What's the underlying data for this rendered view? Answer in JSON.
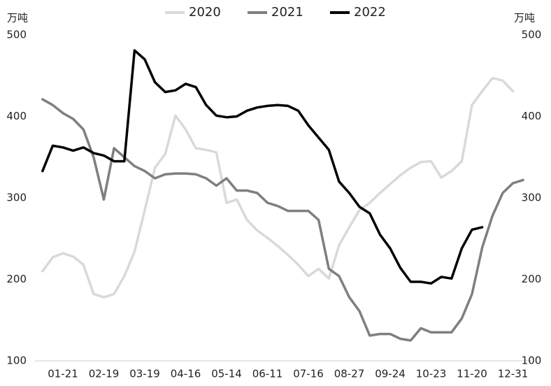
{
  "chart_data": {
    "type": "line",
    "y_label": "万吨",
    "y2_label": "万吨",
    "categories": [
      null,
      null,
      "01-21",
      null,
      null,
      null,
      "02-19",
      null,
      null,
      null,
      "03-19",
      null,
      null,
      null,
      "04-16",
      null,
      null,
      null,
      "05-14",
      null,
      null,
      null,
      "06-11",
      null,
      null,
      null,
      "07-16",
      null,
      null,
      null,
      "08-27",
      null,
      null,
      null,
      "09-24",
      null,
      null,
      null,
      "10-23",
      null,
      null,
      null,
      "11-20",
      null,
      null,
      null,
      "12-31",
      null
    ],
    "ylim": [
      100,
      500
    ],
    "yticks": [
      100,
      200,
      300,
      400,
      500
    ],
    "y2lim": [
      100,
      500
    ],
    "y2ticks": [
      100,
      200,
      300,
      400,
      500
    ],
    "legend": "top",
    "series": [
      {
        "name": "2020",
        "color": "#d9d9d9",
        "values": [
          210,
          227,
          232,
          228,
          218,
          182,
          178,
          182,
          204,
          234,
          285,
          337,
          354,
          401,
          384,
          361,
          359,
          356,
          294,
          298,
          273,
          260,
          251,
          241,
          230,
          218,
          204,
          213,
          201,
          242,
          264,
          285,
          294,
          306,
          317,
          328,
          337,
          344,
          345,
          325,
          333,
          345,
          414,
          431,
          447,
          444,
          431,
          null
        ]
      },
      {
        "name": "2021",
        "color": "#7f7f7f",
        "values": [
          421,
          414,
          404,
          397,
          384,
          350,
          298,
          361,
          350,
          339,
          333,
          324,
          329,
          330,
          330,
          329,
          324,
          315,
          324,
          309,
          309,
          306,
          294,
          290,
          284,
          284,
          284,
          273,
          213,
          204,
          178,
          161,
          131,
          133,
          133,
          127,
          125,
          140,
          135,
          135,
          135,
          152,
          182,
          239,
          278,
          306,
          318,
          322
        ]
      },
      {
        "name": "2022",
        "color": "#000000",
        "values": [
          333,
          364,
          362,
          358,
          362,
          355,
          352,
          345,
          345,
          481,
          470,
          442,
          430,
          432,
          440,
          436,
          414,
          401,
          399,
          400,
          407,
          411,
          413,
          414,
          413,
          407,
          389,
          374,
          359,
          320,
          306,
          289,
          281,
          255,
          238,
          214,
          197,
          197,
          195,
          203,
          201,
          238,
          261,
          264,
          null,
          null,
          null,
          null
        ]
      }
    ]
  }
}
